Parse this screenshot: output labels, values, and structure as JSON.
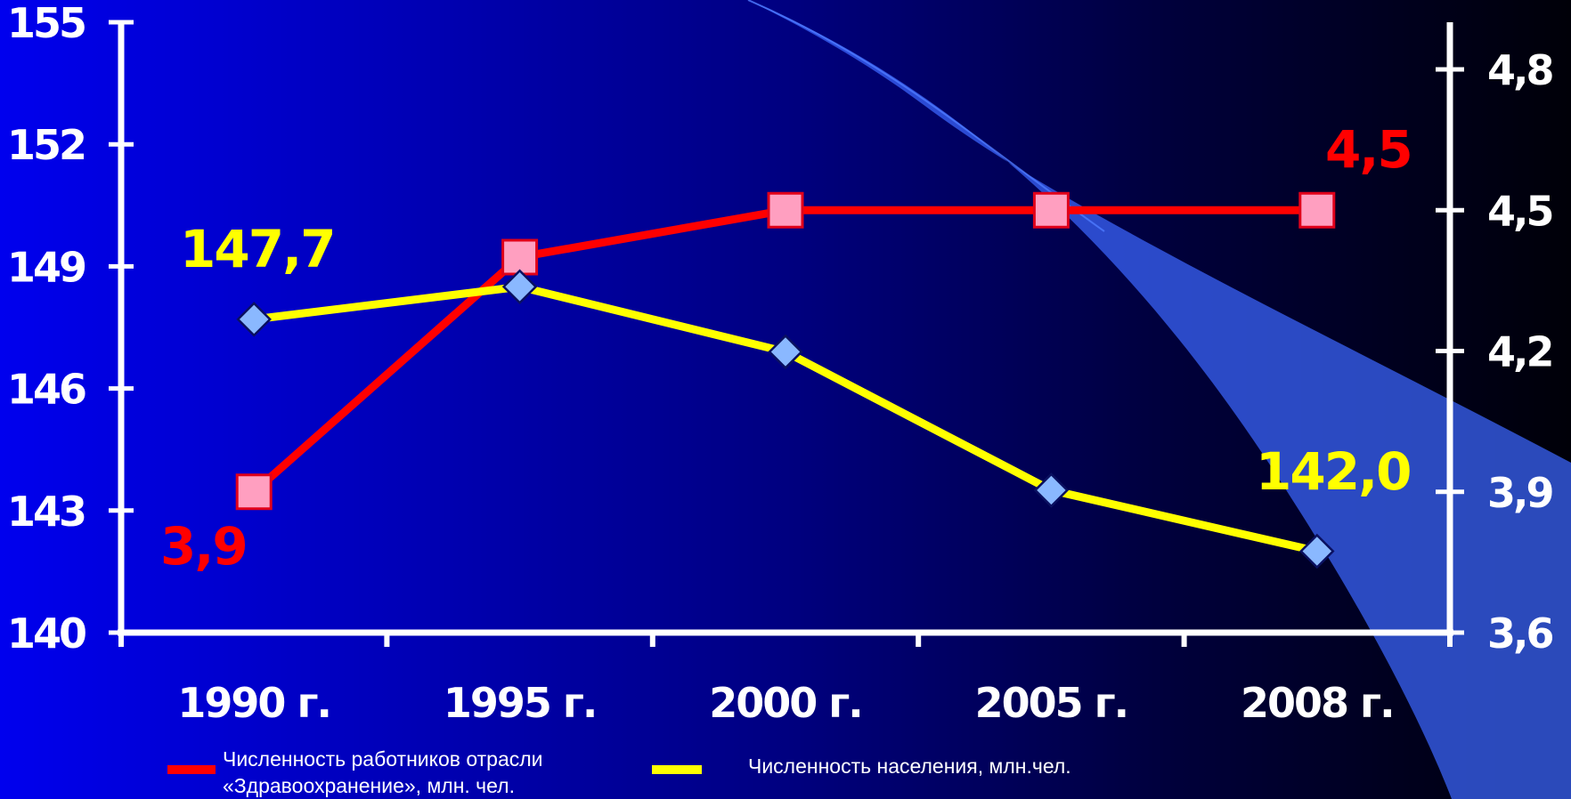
{
  "chart_data": {
    "type": "line",
    "categories": [
      "1990 г.",
      "1995 г.",
      "2000 г.",
      "2005 г.",
      "2008 г."
    ],
    "y_left": {
      "range": [
        140,
        155
      ],
      "ticks": [
        "140",
        "143",
        "146",
        "149",
        "152",
        "155"
      ]
    },
    "y_right": {
      "range": [
        3.6,
        4.8
      ],
      "ticks": [
        "3,6",
        "3,9",
        "4,2",
        "4,5",
        "4,8"
      ]
    },
    "series": [
      {
        "name": "Численность работников отрасли «Здравоохранение», млн. чел.",
        "axis": "right",
        "color": "#ff0000",
        "marker": "square",
        "values": [
          3.9,
          4.4,
          4.5,
          4.5,
          4.5
        ]
      },
      {
        "name": "Численность населения, млн.чел.",
        "axis": "left",
        "color": "#ffff00",
        "marker": "diamond",
        "values": [
          147.7,
          148.5,
          146.9,
          143.5,
          142.0
        ]
      }
    ],
    "data_labels": {
      "workers_first": "3,9",
      "workers_last": "4,5",
      "population_first": "147,7",
      "population_last": "142,0"
    },
    "legend": {
      "position": "bottom",
      "workers_line1": "Численность работников отрасли",
      "workers_line2": "«Здравоохранение», млн. чел.",
      "population": "Численность населения, млн.чел."
    },
    "grid": false
  }
}
